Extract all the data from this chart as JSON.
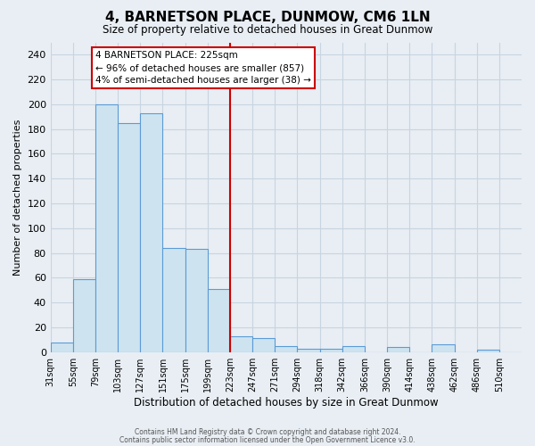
{
  "title": "4, BARNETSON PLACE, DUNMOW, CM6 1LN",
  "subtitle": "Size of property relative to detached houses in Great Dunmow",
  "xlabel": "Distribution of detached houses by size in Great Dunmow",
  "ylabel": "Number of detached properties",
  "bin_labels": [
    "31sqm",
    "55sqm",
    "79sqm",
    "103sqm",
    "127sqm",
    "151sqm",
    "175sqm",
    "199sqm",
    "223sqm",
    "247sqm",
    "271sqm",
    "294sqm",
    "318sqm",
    "342sqm",
    "366sqm",
    "390sqm",
    "414sqm",
    "438sqm",
    "462sqm",
    "486sqm",
    "510sqm"
  ],
  "bar_heights": [
    8,
    59,
    200,
    185,
    193,
    84,
    83,
    51,
    13,
    11,
    5,
    3,
    3,
    5,
    0,
    4,
    0,
    6,
    0,
    2,
    0
  ],
  "bar_color": "#cde4f0",
  "bar_edge_color": "#5b9bd5",
  "vline_x_index": 8,
  "vline_color": "#cc0000",
  "ylim": [
    0,
    250
  ],
  "yticks": [
    0,
    20,
    40,
    60,
    80,
    100,
    120,
    140,
    160,
    180,
    200,
    220,
    240
  ],
  "annotation_title": "4 BARNETSON PLACE: 225sqm",
  "annotation_line1": "← 96% of detached houses are smaller (857)",
  "annotation_line2": "4% of semi-detached houses are larger (38) →",
  "annotation_box_color": "#ffffff",
  "annotation_box_edge": "#cc0000",
  "footer1": "Contains HM Land Registry data © Crown copyright and database right 2024.",
  "footer2": "Contains public sector information licensed under the Open Government Licence v3.0.",
  "background_color": "#e8eef4",
  "grid_color": "#c8d4e0"
}
